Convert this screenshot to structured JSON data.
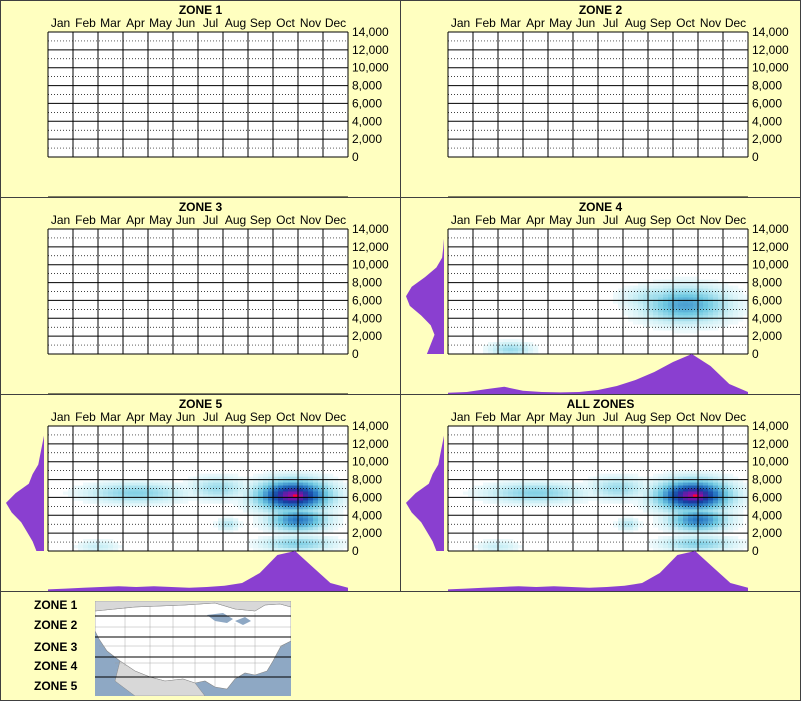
{
  "months": [
    "Jan",
    "Feb",
    "Mar",
    "Apr",
    "May",
    "Jun",
    "Jul",
    "Aug",
    "Sep",
    "Oct",
    "Nov",
    "Dec"
  ],
  "y_ticks": [
    "14,000",
    "12,000",
    "10,000",
    "8,000",
    "6,000",
    "4,000",
    "2,000",
    "0"
  ],
  "colors": {
    "background": "#ffffc0",
    "density": "#8a3fd0",
    "heat_high": "#ff0066",
    "heat_mid": "#1060b0",
    "heat_low": "#9fe0ee"
  },
  "chart_data": [
    {
      "type": "heatmap",
      "title": "ZONE 1",
      "ylim": [
        0,
        14000
      ],
      "hotspots": [],
      "x_density": [],
      "y_density": []
    },
    {
      "type": "heatmap",
      "title": "ZONE 2",
      "ylim": [
        0,
        14000
      ],
      "hotspots": [],
      "x_density": [],
      "y_density": []
    },
    {
      "type": "heatmap",
      "title": "ZONE 3",
      "ylim": [
        0,
        14000
      ],
      "hotspots": [],
      "x_density": [],
      "y_density": []
    },
    {
      "type": "heatmap",
      "title": "ZONE 4",
      "ylim": [
        0,
        14000
      ],
      "hotspots": [
        {
          "month": 10.0,
          "elev": 5500,
          "intensity": 0.45,
          "spread_m": 1.2,
          "spread_e": 1400
        },
        {
          "month": 9.0,
          "elev": 6200,
          "intensity": 0.25,
          "spread_m": 1.0,
          "spread_e": 1000
        },
        {
          "month": 3.0,
          "elev": 500,
          "intensity": 0.25,
          "spread_m": 0.6,
          "spread_e": 600
        }
      ],
      "x_density": [
        0.03,
        0.05,
        0.12,
        0.18,
        0.08,
        0.05,
        0.04,
        0.05,
        0.1,
        0.2,
        0.35,
        0.55,
        0.8,
        1.0,
        0.7,
        0.25,
        0.05
      ],
      "y_density": [
        0.45,
        0.35,
        0.25,
        0.35,
        0.6,
        0.9,
        1.0,
        0.85,
        0.5,
        0.2,
        0.05,
        0.02,
        0.0,
        0.0
      ]
    },
    {
      "type": "heatmap",
      "title": "ZONE 5",
      "ylim": [
        0,
        14000
      ],
      "hotspots": [
        {
          "month": 10.4,
          "elev": 6200,
          "intensity": 1.0,
          "spread_m": 0.35,
          "spread_e": 450
        },
        {
          "month": 10.3,
          "elev": 6200,
          "intensity": 0.85,
          "spread_m": 1.0,
          "spread_e": 1200
        },
        {
          "month": 10.5,
          "elev": 3500,
          "intensity": 0.55,
          "spread_m": 0.8,
          "spread_e": 900
        },
        {
          "month": 4.0,
          "elev": 6500,
          "intensity": 0.3,
          "spread_m": 1.4,
          "spread_e": 800
        },
        {
          "month": 7.3,
          "elev": 7000,
          "intensity": 0.25,
          "spread_m": 0.8,
          "spread_e": 900
        },
        {
          "month": 7.7,
          "elev": 3000,
          "intensity": 0.2,
          "spread_m": 0.3,
          "spread_e": 500
        },
        {
          "month": 2.5,
          "elev": 500,
          "intensity": 0.15,
          "spread_m": 0.6,
          "spread_e": 500
        },
        {
          "month": 10.5,
          "elev": 800,
          "intensity": 0.3,
          "spread_m": 1.0,
          "spread_e": 600
        }
      ],
      "x_density": [
        0.04,
        0.06,
        0.08,
        0.1,
        0.12,
        0.1,
        0.12,
        0.1,
        0.08,
        0.1,
        0.13,
        0.2,
        0.45,
        0.9,
        1.0,
        0.6,
        0.2,
        0.08
      ],
      "y_density": [
        0.2,
        0.3,
        0.45,
        0.6,
        0.85,
        1.0,
        0.75,
        0.4,
        0.3,
        0.15,
        0.1,
        0.05,
        0.0,
        0.0
      ]
    },
    {
      "type": "heatmap",
      "title": "ALL ZONES",
      "ylim": [
        0,
        14000
      ],
      "hotspots": [
        {
          "month": 10.4,
          "elev": 6200,
          "intensity": 1.0,
          "spread_m": 0.35,
          "spread_e": 450
        },
        {
          "month": 10.3,
          "elev": 6200,
          "intensity": 0.85,
          "spread_m": 1.0,
          "spread_e": 1200
        },
        {
          "month": 10.5,
          "elev": 3500,
          "intensity": 0.55,
          "spread_m": 0.8,
          "spread_e": 900
        },
        {
          "month": 4.0,
          "elev": 6500,
          "intensity": 0.3,
          "spread_m": 1.4,
          "spread_e": 800
        },
        {
          "month": 7.3,
          "elev": 7000,
          "intensity": 0.25,
          "spread_m": 0.8,
          "spread_e": 900
        },
        {
          "month": 7.7,
          "elev": 3000,
          "intensity": 0.2,
          "spread_m": 0.3,
          "spread_e": 500
        },
        {
          "month": 2.5,
          "elev": 500,
          "intensity": 0.15,
          "spread_m": 0.6,
          "spread_e": 500
        },
        {
          "month": 10.5,
          "elev": 800,
          "intensity": 0.3,
          "spread_m": 1.0,
          "spread_e": 600
        }
      ],
      "x_density": [
        0.04,
        0.06,
        0.08,
        0.1,
        0.12,
        0.1,
        0.12,
        0.1,
        0.08,
        0.1,
        0.13,
        0.2,
        0.45,
        0.9,
        1.0,
        0.6,
        0.2,
        0.08
      ],
      "y_density": [
        0.2,
        0.3,
        0.45,
        0.6,
        0.85,
        1.0,
        0.75,
        0.4,
        0.3,
        0.15,
        0.1,
        0.05,
        0.0,
        0.0
      ]
    }
  ],
  "legend": {
    "zones": [
      "ZONE 1",
      "ZONE 2",
      "ZONE 3",
      "ZONE 4",
      "ZONE 5"
    ],
    "map_icon": "us-map-icon"
  }
}
